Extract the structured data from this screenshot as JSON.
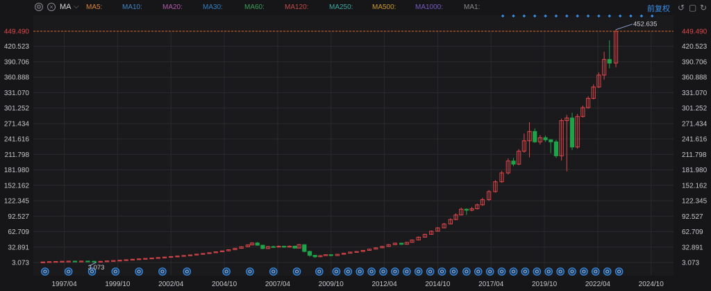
{
  "toolbar": {
    "indicator": "MA",
    "ma_labels": [
      {
        "text": "MA5:",
        "color": "#d9843c"
      },
      {
        "text": "MA10:",
        "color": "#3f84c4"
      },
      {
        "text": "MA20:",
        "color": "#b05aa8"
      },
      {
        "text": "MA30:",
        "color": "#2f7fc2"
      },
      {
        "text": "MA60:",
        "color": "#3d9a5a"
      },
      {
        "text": "MA120:",
        "color": "#c04a4a"
      },
      {
        "text": "MA250:",
        "color": "#3aa6a0"
      },
      {
        "text": "MA500:",
        "color": "#c99a2a"
      },
      {
        "text": "MA1000:",
        "color": "#7a5bc4"
      },
      {
        "text": "MA1:",
        "color": "#8a8a8a"
      }
    ],
    "adjust_label": "前复权"
  },
  "colors": {
    "up": "#e0474c",
    "down": "#1fa34a",
    "grid": "#2a2a2e",
    "axis_text": "#c8c8cc",
    "price_line": "#e0662a",
    "accent": "#3a8fe8"
  },
  "chart_data": {
    "type": "candlestick",
    "title": "",
    "y_ticks": [
      "449.490",
      "420.523",
      "390.706",
      "360.888",
      "331.070",
      "301.252",
      "271.434",
      "241.616",
      "211.798",
      "181.980",
      "152.162",
      "122.345",
      "92.527",
      "62.709",
      "32.891",
      "3.073"
    ],
    "y_range": [
      3.073,
      449.49
    ],
    "current_price": "449.490",
    "high_label": "452.635",
    "low_label": "3.073",
    "x_ticks": [
      "1997/04",
      "1999/10",
      "2002/04",
      "2004/10",
      "2007/04",
      "2009/10",
      "2012/04",
      "2014/10",
      "2017/04",
      "2019/10",
      "2022/04",
      "2024/10"
    ],
    "x_range": [
      1995.8,
      2025.8
    ],
    "grid": true,
    "candles": [
      {
        "t": 1996.25,
        "o": 3.4,
        "c": 4.2,
        "h": 4.6,
        "l": 3.1
      },
      {
        "t": 1996.55,
        "o": 4.2,
        "c": 4.8,
        "h": 5.1,
        "l": 3.9
      },
      {
        "t": 1996.85,
        "o": 4.8,
        "c": 5.1,
        "h": 5.5,
        "l": 4.5
      },
      {
        "t": 1997.15,
        "o": 5.1,
        "c": 5.5,
        "h": 5.9,
        "l": 4.8
      },
      {
        "t": 1997.45,
        "o": 5.5,
        "c": 5.8,
        "h": 6.2,
        "l": 5.2
      },
      {
        "t": 1997.75,
        "o": 5.8,
        "c": 5.6,
        "h": 6.1,
        "l": 5.2
      },
      {
        "t": 1998.05,
        "o": 5.6,
        "c": 5.9,
        "h": 6.3,
        "l": 5.3
      },
      {
        "t": 1998.35,
        "o": 5.9,
        "c": 5.5,
        "h": 6.2,
        "l": 5.1
      },
      {
        "t": 1998.65,
        "o": 5.5,
        "c": 4.6,
        "h": 5.8,
        "l": 3.8
      },
      {
        "t": 1998.95,
        "o": 4.6,
        "c": 5.4,
        "h": 5.7,
        "l": 4.3
      },
      {
        "t": 1999.25,
        "o": 5.4,
        "c": 6.2,
        "h": 6.6,
        "l": 5.1
      },
      {
        "t": 1999.55,
        "o": 6.2,
        "c": 6.9,
        "h": 7.3,
        "l": 5.9
      },
      {
        "t": 1999.85,
        "o": 6.9,
        "c": 7.6,
        "h": 8.0,
        "l": 6.6
      },
      {
        "t": 2000.15,
        "o": 7.6,
        "c": 8.5,
        "h": 8.9,
        "l": 7.3
      },
      {
        "t": 2000.45,
        "o": 8.5,
        "c": 9.4,
        "h": 9.9,
        "l": 8.2
      },
      {
        "t": 2000.75,
        "o": 9.4,
        "c": 10.2,
        "h": 10.6,
        "l": 9.1
      },
      {
        "t": 2001.05,
        "o": 10.2,
        "c": 11.0,
        "h": 11.5,
        "l": 9.9
      },
      {
        "t": 2001.35,
        "o": 11.0,
        "c": 11.8,
        "h": 12.3,
        "l": 10.7
      },
      {
        "t": 2001.65,
        "o": 11.8,
        "c": 12.7,
        "h": 13.2,
        "l": 11.5
      },
      {
        "t": 2001.95,
        "o": 12.7,
        "c": 13.6,
        "h": 14.1,
        "l": 12.4
      },
      {
        "t": 2002.25,
        "o": 13.6,
        "c": 14.6,
        "h": 15.1,
        "l": 13.3
      },
      {
        "t": 2002.55,
        "o": 14.6,
        "c": 15.6,
        "h": 16.1,
        "l": 14.3
      },
      {
        "t": 2002.85,
        "o": 15.6,
        "c": 16.6,
        "h": 17.2,
        "l": 15.3
      },
      {
        "t": 2003.15,
        "o": 16.6,
        "c": 17.8,
        "h": 18.4,
        "l": 16.3
      },
      {
        "t": 2003.45,
        "o": 17.8,
        "c": 19.2,
        "h": 19.8,
        "l": 17.5
      },
      {
        "t": 2003.75,
        "o": 19.2,
        "c": 20.5,
        "h": 21.2,
        "l": 18.9
      },
      {
        "t": 2004.05,
        "o": 20.5,
        "c": 22.0,
        "h": 22.6,
        "l": 20.1
      },
      {
        "t": 2004.35,
        "o": 22.0,
        "c": 23.8,
        "h": 24.5,
        "l": 21.6
      },
      {
        "t": 2004.65,
        "o": 23.8,
        "c": 25.6,
        "h": 26.3,
        "l": 23.4
      },
      {
        "t": 2004.95,
        "o": 25.6,
        "c": 27.8,
        "h": 28.6,
        "l": 25.2
      },
      {
        "t": 2005.25,
        "o": 27.8,
        "c": 30.5,
        "h": 31.4,
        "l": 27.3
      },
      {
        "t": 2005.55,
        "o": 30.5,
        "c": 33.5,
        "h": 34.5,
        "l": 30.0
      },
      {
        "t": 2005.85,
        "o": 33.5,
        "c": 37.0,
        "h": 38.2,
        "l": 33.0
      },
      {
        "t": 2006.05,
        "o": 37.0,
        "c": 40.8,
        "h": 42.2,
        "l": 36.5
      },
      {
        "t": 2006.3,
        "o": 40.8,
        "c": 36.5,
        "h": 42.8,
        "l": 35.6
      },
      {
        "t": 2006.55,
        "o": 36.5,
        "c": 30.0,
        "h": 37.3,
        "l": 28.8
      },
      {
        "t": 2006.8,
        "o": 30.0,
        "c": 33.8,
        "h": 35.0,
        "l": 29.2
      },
      {
        "t": 2007.05,
        "o": 33.8,
        "c": 32.9,
        "h": 35.5,
        "l": 31.8
      },
      {
        "t": 2007.3,
        "o": 32.9,
        "c": 34.5,
        "h": 35.8,
        "l": 32.0
      },
      {
        "t": 2007.55,
        "o": 34.5,
        "c": 32.7,
        "h": 35.6,
        "l": 31.5
      },
      {
        "t": 2007.8,
        "o": 32.7,
        "c": 34.6,
        "h": 35.9,
        "l": 31.8
      },
      {
        "t": 2008.05,
        "o": 34.6,
        "c": 31.0,
        "h": 35.8,
        "l": 30.0
      },
      {
        "t": 2008.25,
        "o": 31.0,
        "c": 37.5,
        "h": 38.8,
        "l": 30.3
      },
      {
        "t": 2008.5,
        "o": 37.5,
        "c": 24.5,
        "h": 38.3,
        "l": 22.8
      },
      {
        "t": 2008.75,
        "o": 24.5,
        "c": 17.0,
        "h": 25.8,
        "l": 14.5
      },
      {
        "t": 2009.0,
        "o": 17.0,
        "c": 14.2,
        "h": 17.8,
        "l": 12.0
      },
      {
        "t": 2009.25,
        "o": 14.2,
        "c": 16.4,
        "h": 17.3,
        "l": 13.5
      },
      {
        "t": 2009.5,
        "o": 16.4,
        "c": 18.2,
        "h": 19.0,
        "l": 15.8
      },
      {
        "t": 2009.75,
        "o": 18.2,
        "c": 16.5,
        "h": 18.6,
        "l": 15.4
      },
      {
        "t": 2010.05,
        "o": 16.5,
        "c": 19.0,
        "h": 19.6,
        "l": 15.9
      },
      {
        "t": 2010.35,
        "o": 19.0,
        "c": 21.0,
        "h": 21.6,
        "l": 18.2
      },
      {
        "t": 2010.65,
        "o": 21.0,
        "c": 23.3,
        "h": 24.0,
        "l": 20.5
      },
      {
        "t": 2010.95,
        "o": 23.3,
        "c": 24.3,
        "h": 25.0,
        "l": 22.5
      },
      {
        "t": 2011.25,
        "o": 24.3,
        "c": 26.5,
        "h": 27.3,
        "l": 23.8
      },
      {
        "t": 2011.55,
        "o": 26.5,
        "c": 29.0,
        "h": 29.8,
        "l": 26.0
      },
      {
        "t": 2011.85,
        "o": 29.0,
        "c": 31.5,
        "h": 32.4,
        "l": 28.5
      },
      {
        "t": 2012.15,
        "o": 31.5,
        "c": 34.2,
        "h": 35.1,
        "l": 31.0
      },
      {
        "t": 2012.45,
        "o": 34.2,
        "c": 37.5,
        "h": 38.5,
        "l": 33.8
      },
      {
        "t": 2012.75,
        "o": 37.5,
        "c": 40.5,
        "h": 41.5,
        "l": 37.0
      },
      {
        "t": 2013.05,
        "o": 40.5,
        "c": 38.2,
        "h": 41.2,
        "l": 37.2
      },
      {
        "t": 2013.3,
        "o": 38.2,
        "c": 42.0,
        "h": 43.0,
        "l": 37.6
      },
      {
        "t": 2013.55,
        "o": 42.0,
        "c": 46.5,
        "h": 47.6,
        "l": 41.5
      },
      {
        "t": 2013.85,
        "o": 46.5,
        "c": 52.0,
        "h": 53.3,
        "l": 46.0
      },
      {
        "t": 2014.15,
        "o": 52.0,
        "c": 57.5,
        "h": 58.8,
        "l": 51.5
      },
      {
        "t": 2014.45,
        "o": 57.5,
        "c": 63.5,
        "h": 65.0,
        "l": 57.0
      },
      {
        "t": 2014.75,
        "o": 63.5,
        "c": 70.0,
        "h": 71.5,
        "l": 63.0
      },
      {
        "t": 2015.05,
        "o": 70.0,
        "c": 77.5,
        "h": 79.5,
        "l": 69.5
      },
      {
        "t": 2015.35,
        "o": 77.5,
        "c": 86.0,
        "h": 88.5,
        "l": 76.8
      },
      {
        "t": 2015.6,
        "o": 86.0,
        "c": 95.0,
        "h": 98.0,
        "l": 85.0
      },
      {
        "t": 2015.85,
        "o": 95.0,
        "c": 106.0,
        "h": 109.0,
        "l": 94.0
      },
      {
        "t": 2016.1,
        "o": 106.0,
        "c": 104.0,
        "h": 107.5,
        "l": 95.0
      },
      {
        "t": 2016.35,
        "o": 104.0,
        "c": 107.0,
        "h": 110.5,
        "l": 102.0
      },
      {
        "t": 2016.6,
        "o": 107.0,
        "c": 114.5,
        "h": 117.0,
        "l": 105.5
      },
      {
        "t": 2016.85,
        "o": 114.5,
        "c": 124.5,
        "h": 128.0,
        "l": 112.5
      },
      {
        "t": 2017.15,
        "o": 124.5,
        "c": 140.0,
        "h": 143.0,
        "l": 122.0
      },
      {
        "t": 2017.45,
        "o": 140.0,
        "c": 159.0,
        "h": 162.0,
        "l": 138.0
      },
      {
        "t": 2017.75,
        "o": 159.0,
        "c": 176.0,
        "h": 180.0,
        "l": 157.0
      },
      {
        "t": 2018.05,
        "o": 176.0,
        "c": 199.0,
        "h": 204.0,
        "l": 173.0
      },
      {
        "t": 2018.3,
        "o": 199.0,
        "c": 193.0,
        "h": 205.0,
        "l": 189.0
      },
      {
        "t": 2018.55,
        "o": 193.0,
        "c": 218.0,
        "h": 222.0,
        "l": 191.0
      },
      {
        "t": 2018.8,
        "o": 218.0,
        "c": 238.0,
        "h": 252.0,
        "l": 215.0
      },
      {
        "t": 2019.05,
        "o": 238.0,
        "c": 256.0,
        "h": 274.0,
        "l": 206.0
      },
      {
        "t": 2019.3,
        "o": 256.0,
        "c": 236.0,
        "h": 262.0,
        "l": 234.0
      },
      {
        "t": 2019.55,
        "o": 236.0,
        "c": 244.0,
        "h": 249.0,
        "l": 231.0
      },
      {
        "t": 2019.8,
        "o": 244.0,
        "c": 240.0,
        "h": 248.0,
        "l": 236.0
      },
      {
        "t": 2020.05,
        "o": 240.0,
        "c": 236.0,
        "h": 241.0,
        "l": 214.0
      },
      {
        "t": 2020.3,
        "o": 236.0,
        "c": 209.0,
        "h": 240.0,
        "l": 205.0
      },
      {
        "t": 2020.55,
        "o": 209.0,
        "c": 277.0,
        "h": 281.0,
        "l": 200.0
      },
      {
        "t": 2020.8,
        "o": 277.0,
        "c": 282.0,
        "h": 288.0,
        "l": 179.0
      },
      {
        "t": 2021.05,
        "o": 282.0,
        "c": 226.0,
        "h": 292.0,
        "l": 220.0
      },
      {
        "t": 2021.3,
        "o": 226.0,
        "c": 285.0,
        "h": 290.0,
        "l": 223.0
      },
      {
        "t": 2021.55,
        "o": 285.0,
        "c": 302.0,
        "h": 306.0,
        "l": 283.0
      },
      {
        "t": 2021.8,
        "o": 302.0,
        "c": 320.0,
        "h": 324.0,
        "l": 300.0
      },
      {
        "t": 2022.05,
        "o": 320.0,
        "c": 342.0,
        "h": 347.0,
        "l": 318.0
      },
      {
        "t": 2022.3,
        "o": 342.0,
        "c": 365.0,
        "h": 370.0,
        "l": 340.0
      },
      {
        "t": 2022.55,
        "o": 365.0,
        "c": 395.0,
        "h": 410.0,
        "l": 356.0
      },
      {
        "t": 2022.8,
        "o": 395.0,
        "c": 388.0,
        "h": 432.0,
        "l": 378.0
      },
      {
        "t": 2023.1,
        "o": 388.0,
        "c": 449.49,
        "h": 452.6,
        "l": 380.0
      }
    ],
    "event_markers": [
      1996.35,
      1997.45,
      1998.55,
      1999.65,
      2000.75,
      2001.85,
      2003.0,
      2004.85,
      2005.95,
      2007.05,
      2008.15,
      2009.2,
      2010.0,
      2010.55,
      2011.1,
      2011.65,
      2012.2,
      2012.75,
      2013.3,
      2013.85,
      2014.4,
      2014.95,
      2015.5,
      2016.1,
      2016.65,
      2017.2,
      2017.75,
      2018.3,
      2018.85,
      2019.4,
      2019.95,
      2020.5,
      2021.05,
      2021.6,
      2022.15,
      2022.7,
      2023.25
    ],
    "future_markers": [
      2017.8,
      2018.3,
      2018.8,
      2019.3,
      2019.8,
      2020.3,
      2020.8,
      2021.3,
      2021.8,
      2022.3,
      2022.8,
      2023.3,
      2023.8,
      2024.3,
      2024.8
    ]
  }
}
